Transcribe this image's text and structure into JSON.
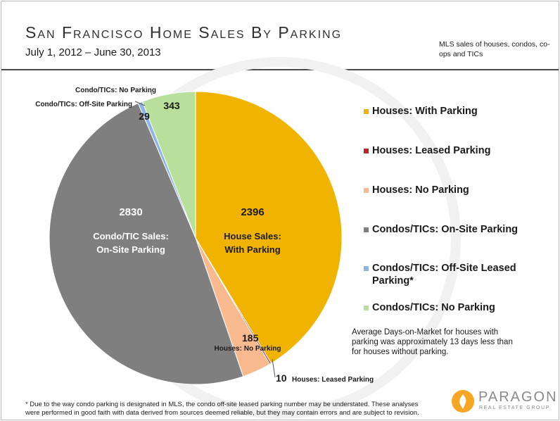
{
  "header": {
    "title": "San Francisco Home Sales By Parking",
    "subtitle": "July 1, 2012 – June 30, 2013",
    "note": "MLS sales of houses, condos, co-ops and TICs"
  },
  "chart_data": {
    "type": "pie",
    "slices": [
      {
        "label": "Houses: With Parking",
        "value": 2396,
        "color": "#f0b400",
        "inner_text": [
          "2396",
          "House Sales:",
          "With Parking"
        ]
      },
      {
        "label": "Houses: Leased Parking",
        "value": 10,
        "color": "#c0232d",
        "callout_value": "10",
        "callout_label": "Houses: Leased Parking"
      },
      {
        "label": "Houses: No Parking",
        "value": 185,
        "color": "#f9b98f",
        "callout_value": "185",
        "callout_label": "Houses: No Parking"
      },
      {
        "label": "Condos/TICs: On-Site Parking",
        "value": 2830,
        "color": "#7f7f7f",
        "inner_text": [
          "2830",
          "Condo/TIC Sales:",
          "On-Site Parking"
        ]
      },
      {
        "label": "Condos/TICs: Off-Site Leased Parking*",
        "value": 29,
        "color": "#8db4e2",
        "callout_value": "29",
        "callout_label": "Condo/TICs: Off-Site Parking"
      },
      {
        "label": "Condos/TICs: No Parking",
        "value": 343,
        "color": "#b9df9c",
        "callout_value": "343",
        "callout_label": "Condo/TICs: No Parking"
      }
    ],
    "legend_position": "right"
  },
  "annotation": "Average Days-on-Market for houses with parking was approximately 13 days less than for houses without parking.",
  "footnote": "* Due to the way condo parking is designated in MLS, the condo off-site leased parking number may be understated. These analyses were performed in good faith with data derived from sources deemed reliable, but they may contain errors and are subject to revision.",
  "logo": {
    "name": "PARAGON",
    "tagline": "REAL ESTATE GROUP",
    "brand_color": "#f5a623"
  }
}
